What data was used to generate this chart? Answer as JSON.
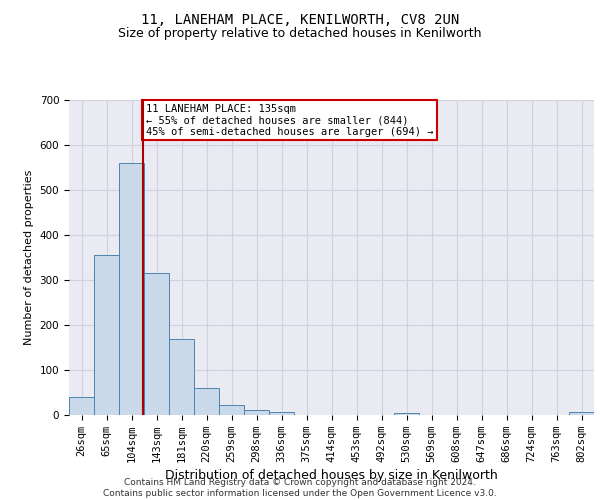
{
  "title": "11, LANEHAM PLACE, KENILWORTH, CV8 2UN",
  "subtitle": "Size of property relative to detached houses in Kenilworth",
  "xlabel": "Distribution of detached houses by size in Kenilworth",
  "ylabel": "Number of detached properties",
  "footer_line1": "Contains HM Land Registry data © Crown copyright and database right 2024.",
  "footer_line2": "Contains public sector information licensed under the Open Government Licence v3.0.",
  "bin_labels": [
    "26sqm",
    "65sqm",
    "104sqm",
    "143sqm",
    "181sqm",
    "220sqm",
    "259sqm",
    "298sqm",
    "336sqm",
    "375sqm",
    "414sqm",
    "453sqm",
    "492sqm",
    "530sqm",
    "569sqm",
    "608sqm",
    "647sqm",
    "686sqm",
    "724sqm",
    "763sqm",
    "802sqm"
  ],
  "bar_values": [
    40,
    355,
    560,
    315,
    168,
    60,
    22,
    11,
    6,
    0,
    0,
    0,
    0,
    5,
    0,
    0,
    0,
    0,
    0,
    0,
    6
  ],
  "bar_color": "#c9d9ea",
  "bar_edge_color": "#4d84b0",
  "grid_color": "#d0d0e0",
  "background_color": "#eaeaf2",
  "annotation_box_bg": "#ffffff",
  "annotation_box_edge": "#cc0000",
  "vline_color": "#aa0000",
  "vline_x": 2.47,
  "annotation_text_line1": "11 LANEHAM PLACE: 135sqm",
  "annotation_text_line2": "← 55% of detached houses are smaller (844)",
  "annotation_text_line3": "45% of semi-detached houses are larger (694) →",
  "ylim": [
    0,
    700
  ],
  "yticks": [
    0,
    100,
    200,
    300,
    400,
    500,
    600,
    700
  ],
  "title_fontsize": 10,
  "subtitle_fontsize": 9,
  "ylabel_fontsize": 8,
  "xlabel_fontsize": 9,
  "tick_fontsize": 7.5,
  "ann_fontsize": 7.5,
  "footer_fontsize": 6.5
}
